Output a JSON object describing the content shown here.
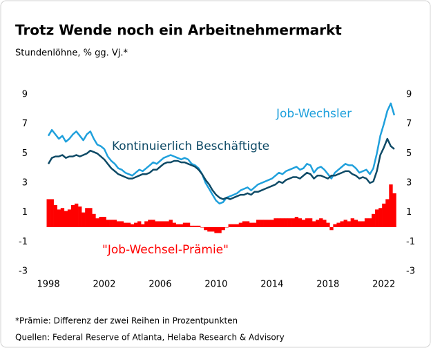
{
  "chart_data": {
    "type": "line",
    "title": "Trotz Wende noch ein Arbeitnehmermarkt",
    "subtitle": "Stundenlöhne, % gg. Vj.*",
    "footnote": "*Prämie: Differenz der zwei Reihen in Prozentpunkten",
    "source": "Quellen: Federal Reserve of Atlanta, Helaba Research & Advisory",
    "annotations": [
      "Job-Wechsler",
      "Kontinuierlich Beschäftigte",
      "\"Job-Wechsel-Prämie\""
    ],
    "x": [
      1998,
      1998.25,
      1998.5,
      1998.75,
      1999,
      1999.25,
      1999.5,
      1999.75,
      2000,
      2000.25,
      2000.5,
      2000.75,
      2001,
      2001.25,
      2001.5,
      2001.75,
      2002,
      2002.25,
      2002.5,
      2002.75,
      2003,
      2003.25,
      2003.5,
      2003.75,
      2004,
      2004.25,
      2004.5,
      2004.75,
      2005,
      2005.25,
      2005.5,
      2005.75,
      2006,
      2006.25,
      2006.5,
      2006.75,
      2007,
      2007.25,
      2007.5,
      2007.75,
      2008,
      2008.25,
      2008.5,
      2008.75,
      2009,
      2009.25,
      2009.5,
      2009.75,
      2010,
      2010.25,
      2010.5,
      2010.75,
      2011,
      2011.25,
      2011.5,
      2011.75,
      2012,
      2012.25,
      2012.5,
      2012.75,
      2013,
      2013.25,
      2013.5,
      2013.75,
      2014,
      2014.25,
      2014.5,
      2014.75,
      2015,
      2015.25,
      2015.5,
      2015.75,
      2016,
      2016.25,
      2016.5,
      2016.75,
      2017,
      2017.25,
      2017.5,
      2017.75,
      2018,
      2018.25,
      2018.5,
      2018.75,
      2019,
      2019.25,
      2019.5,
      2019.75,
      2020,
      2020.25,
      2020.5,
      2020.75,
      2021,
      2021.25,
      2021.5,
      2021.75,
      2022,
      2022.25,
      2022.5,
      2022.75
    ],
    "series": [
      {
        "name": "Job-Wechsel-Prämie",
        "type": "bar",
        "color": "#ff0000",
        "values": [
          1.9,
          1.9,
          1.5,
          1.2,
          1.3,
          1.1,
          1.2,
          1.5,
          1.6,
          1.4,
          1.0,
          1.3,
          1.3,
          0.9,
          0.6,
          0.7,
          0.7,
          0.5,
          0.5,
          0.5,
          0.4,
          0.4,
          0.3,
          0.3,
          0.2,
          0.3,
          0.4,
          0.2,
          0.4,
          0.5,
          0.5,
          0.4,
          0.4,
          0.4,
          0.4,
          0.5,
          0.3,
          0.2,
          0.2,
          0.3,
          0.3,
          0.1,
          0.1,
          0.1,
          0,
          -0.2,
          -0.3,
          -0.3,
          -0.4,
          -0.4,
          -0.2,
          0,
          0.2,
          0.2,
          0.2,
          0.3,
          0.4,
          0.4,
          0.3,
          0.3,
          0.5,
          0.5,
          0.5,
          0.5,
          0.5,
          0.6,
          0.6,
          0.6,
          0.6,
          0.6,
          0.6,
          0.7,
          0.6,
          0.5,
          0.6,
          0.6,
          0.4,
          0.5,
          0.6,
          0.5,
          0.3,
          -0.2,
          0.2,
          0.3,
          0.4,
          0.5,
          0.4,
          0.6,
          0.5,
          0.4,
          0.4,
          0.6,
          0.6,
          0.9,
          1.2,
          1.3,
          1.6,
          1.9,
          2.9,
          2.3
        ]
      },
      {
        "name": "Job-Wechsler",
        "type": "line",
        "color": "#1fa0dc",
        "values": [
          6.2,
          6.6,
          6.3,
          6.0,
          6.2,
          5.8,
          6.0,
          6.3,
          6.5,
          6.2,
          5.9,
          6.3,
          6.5,
          6.0,
          5.6,
          5.5,
          5.3,
          4.8,
          4.5,
          4.3,
          4.0,
          3.9,
          3.7,
          3.6,
          3.5,
          3.7,
          3.9,
          3.8,
          4.0,
          4.2,
          4.4,
          4.3,
          4.5,
          4.7,
          4.8,
          4.9,
          4.8,
          4.7,
          4.6,
          4.7,
          4.6,
          4.3,
          4.2,
          4.0,
          3.6,
          3.0,
          2.6,
          2.2,
          1.8,
          1.6,
          1.7,
          2.0,
          2.1,
          2.2,
          2.3,
          2.5,
          2.6,
          2.7,
          2.5,
          2.7,
          2.9,
          3.0,
          3.1,
          3.2,
          3.3,
          3.5,
          3.7,
          3.6,
          3.8,
          3.9,
          4.0,
          4.1,
          3.9,
          4.0,
          4.3,
          4.2,
          3.7,
          4.0,
          4.1,
          3.9,
          3.6,
          3.3,
          3.7,
          3.9,
          4.1,
          4.3,
          4.2,
          4.2,
          4.0,
          3.7,
          3.8,
          3.9,
          3.6,
          4.0,
          5.0,
          6.2,
          7.0,
          7.9,
          8.4,
          7.6
        ]
      },
      {
        "name": "Kontinuierlich Beschäftigte",
        "type": "line",
        "color": "#0e4a66",
        "values": [
          4.3,
          4.7,
          4.8,
          4.8,
          4.9,
          4.7,
          4.8,
          4.8,
          4.9,
          4.8,
          4.9,
          5.0,
          5.2,
          5.1,
          5.0,
          4.8,
          4.6,
          4.3,
          4.0,
          3.8,
          3.6,
          3.5,
          3.4,
          3.3,
          3.3,
          3.4,
          3.5,
          3.6,
          3.6,
          3.7,
          3.9,
          3.9,
          4.1,
          4.3,
          4.4,
          4.4,
          4.5,
          4.5,
          4.4,
          4.4,
          4.3,
          4.2,
          4.1,
          3.9,
          3.6,
          3.2,
          2.9,
          2.5,
          2.2,
          2.0,
          1.9,
          2.0,
          1.9,
          2.0,
          2.1,
          2.2,
          2.2,
          2.3,
          2.2,
          2.4,
          2.4,
          2.5,
          2.6,
          2.7,
          2.8,
          2.9,
          3.1,
          3.0,
          3.2,
          3.3,
          3.4,
          3.4,
          3.3,
          3.5,
          3.7,
          3.6,
          3.3,
          3.5,
          3.5,
          3.4,
          3.3,
          3.5,
          3.5,
          3.6,
          3.7,
          3.8,
          3.8,
          3.6,
          3.5,
          3.3,
          3.4,
          3.3,
          3.0,
          3.1,
          3.8,
          4.9,
          5.4,
          6.0,
          5.5,
          5.3
        ]
      }
    ],
    "xlim": [
      1997.8,
      2023.3
    ],
    "xticks": [
      1998,
      2002,
      2006,
      2010,
      2014,
      2018,
      2022
    ],
    "ylim": [
      -3,
      9
    ],
    "yticks": [
      -3,
      -1,
      1,
      3,
      5,
      7,
      9
    ],
    "grid": false
  }
}
